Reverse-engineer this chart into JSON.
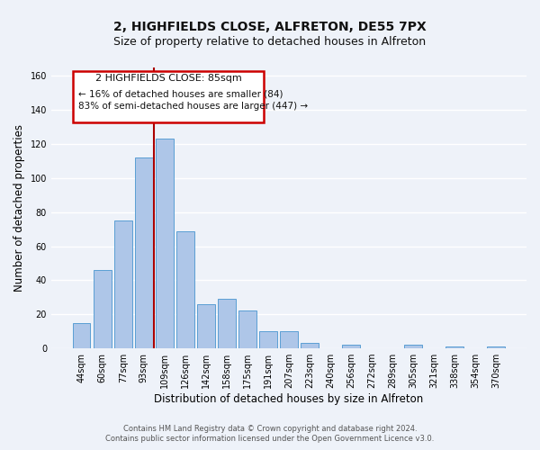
{
  "title": "2, HIGHFIELDS CLOSE, ALFRETON, DE55 7PX",
  "subtitle": "Size of property relative to detached houses in Alfreton",
  "xlabel": "Distribution of detached houses by size in Alfreton",
  "ylabel": "Number of detached properties",
  "bar_labels": [
    "44sqm",
    "60sqm",
    "77sqm",
    "93sqm",
    "109sqm",
    "126sqm",
    "142sqm",
    "158sqm",
    "175sqm",
    "191sqm",
    "207sqm",
    "223sqm",
    "240sqm",
    "256sqm",
    "272sqm",
    "289sqm",
    "305sqm",
    "321sqm",
    "338sqm",
    "354sqm",
    "370sqm"
  ],
  "bar_values": [
    15,
    46,
    75,
    112,
    123,
    69,
    26,
    29,
    22,
    10,
    10,
    3,
    0,
    2,
    0,
    0,
    2,
    0,
    1,
    0,
    1
  ],
  "bar_color": "#aec6e8",
  "bar_edge_color": "#5a9fd4",
  "ylim": [
    0,
    165
  ],
  "yticks": [
    0,
    20,
    40,
    60,
    80,
    100,
    120,
    140,
    160
  ],
  "vline_x": 3.5,
  "vline_color": "#aa0000",
  "annotation_title": "2 HIGHFIELDS CLOSE: 85sqm",
  "annotation_line1": "← 16% of detached houses are smaller (84)",
  "annotation_line2": "83% of semi-detached houses are larger (447) →",
  "annotation_box_color": "#cc0000",
  "footer_line1": "Contains HM Land Registry data © Crown copyright and database right 2024.",
  "footer_line2": "Contains public sector information licensed under the Open Government Licence v3.0.",
  "background_color": "#eef2f9",
  "grid_color": "#ffffff",
  "title_fontsize": 10,
  "subtitle_fontsize": 9,
  "xlabel_fontsize": 8.5,
  "ylabel_fontsize": 8.5,
  "tick_fontsize": 7,
  "footer_fontsize": 6
}
